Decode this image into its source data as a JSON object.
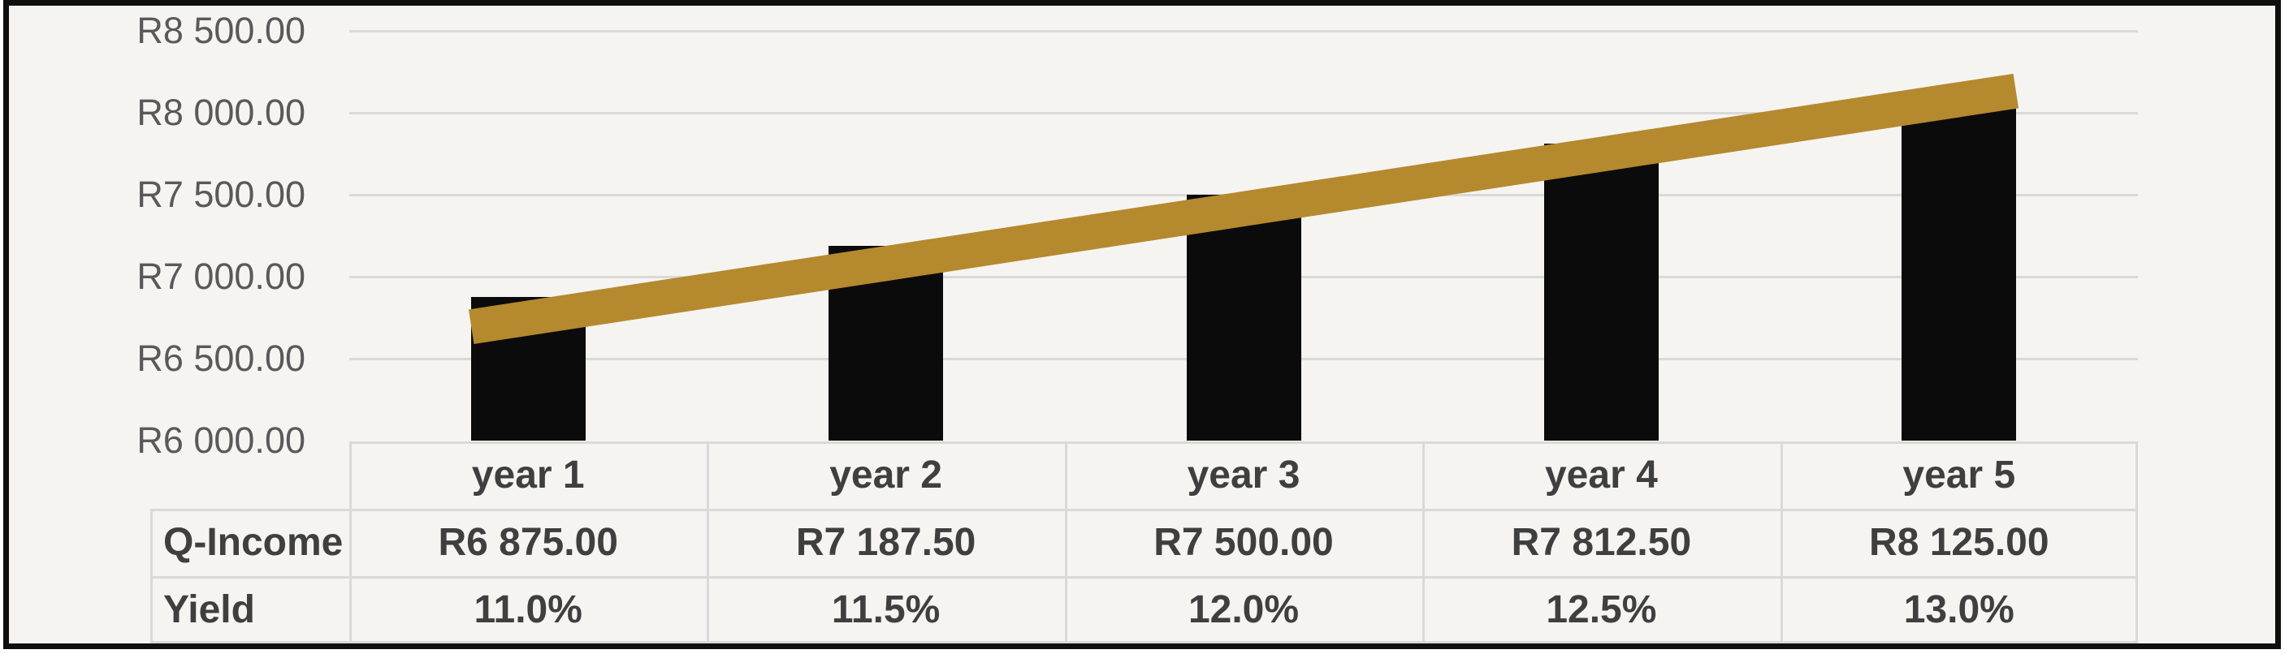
{
  "chart_data": {
    "type": "bar",
    "subtype": "combo-bar-with-line-overlay",
    "categories": [
      "year 1",
      "year 2",
      "year 3",
      "year 4",
      "year 5"
    ],
    "series": [
      {
        "name": "Q-Income",
        "chart_type": "bar",
        "color": "#0B0B0B",
        "values": [
          6875.0,
          7187.5,
          7500.0,
          7812.5,
          8125.0
        ],
        "value_labels": [
          "R6 875.00",
          "R7 187.50",
          "R7 500.00",
          "R7 812.50",
          "R8 125.00"
        ]
      },
      {
        "name": "Yield",
        "chart_type": "line",
        "color": "#B5892E",
        "axis": "secondary (axis labels not shown)",
        "values": [
          11.0,
          11.5,
          12.0,
          12.5,
          13.0
        ],
        "value_labels": [
          "11.0%",
          "11.5%",
          "12.0%",
          "12.5%",
          "13.0%"
        ]
      }
    ],
    "y_axis": {
      "min": 6000,
      "max": 8500,
      "step": 500,
      "tick_labels": [
        "R6 000.00",
        "R6 500.00",
        "R7 000.00",
        "R7 500.00",
        "R8 000.00",
        "R8 500.00"
      ]
    },
    "x_axis": {
      "labels_shown_in_data_table": true
    },
    "title": "",
    "legend": "none",
    "gridlines": "horizontal only",
    "data_table": {
      "row_headers": [
        "Q-Income",
        "Yield"
      ],
      "column_headers": [
        "year 1",
        "year 2",
        "year 3",
        "year 4",
        "year 5"
      ],
      "rows": [
        [
          "R6 875.00",
          "R7 187.50",
          "R7 500.00",
          "R7 812.50",
          "R8 125.00"
        ],
        [
          "11.0%",
          "11.5%",
          "12.0%",
          "12.5%",
          "13.0%"
        ]
      ]
    },
    "colors": {
      "bar": "#0B0B0B",
      "line": "#B5892E",
      "gridline": "#D9D9D9",
      "table_border": "#D9D9D9",
      "axis_label_text": "#595959",
      "table_text": "#3F3F3F",
      "chart_background": "#F5F4F1",
      "outer_border": "#0F0F0F",
      "page_background": "#FFFFFF"
    }
  }
}
